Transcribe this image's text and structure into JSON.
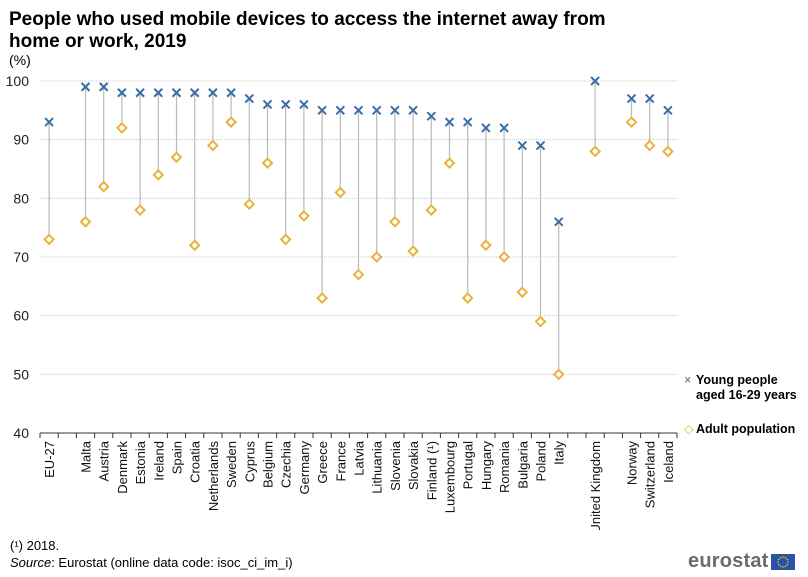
{
  "header": {
    "title": "People who used mobile devices to access the internet away from home or work, 2019",
    "unit": "(%)"
  },
  "legend": {
    "young_marker": "×",
    "young_label_line1": "Young people",
    "young_label_line2": "aged 16-29 years",
    "adult_marker": "◇",
    "adult_label": "Adult population"
  },
  "footer": {
    "footnote": "(¹) 2018.",
    "source_label": "Source",
    "source_text": ": Eurostat (online data code: isoc_ci_im_i)",
    "logo_text": "eurostat"
  },
  "colors": {
    "young": "#3a6fa6",
    "adult": "#e8b33c",
    "connector": "#b9b9b9",
    "grid": "#c8c8c8"
  },
  "chart_data": {
    "type": "scatter",
    "title": "People who used mobile devices to access the internet away from home or work, 2019",
    "xlabel": "",
    "ylabel": "(%)",
    "ylim": [
      40,
      100
    ],
    "yticks": [
      40,
      50,
      60,
      70,
      80,
      90,
      100
    ],
    "grid": true,
    "legend_position": "right",
    "categories": [
      "EU-27",
      "",
      "Malta",
      "Austria",
      "Denmark",
      "Estonia",
      "Ireland",
      "Spain",
      "Croatia",
      "Netherlands",
      "Sweden",
      "Cyprus",
      "Belgium",
      "Czechia",
      "Germany",
      "Greece",
      "France",
      "Latvia",
      "Lithuania",
      "Slovenia",
      "Slovakia",
      "Finland (¹)",
      "Luxembourg",
      "Portugal",
      "Hungary",
      "Romania",
      "Bulgaria",
      "Poland",
      "Italy",
      "",
      "United Kingdom",
      "",
      "Norway",
      "Switzerland",
      "Iceland"
    ],
    "series": [
      {
        "name": "Young people aged 16-29 years",
        "marker": "x",
        "values": [
          93,
          null,
          99,
          99,
          98,
          98,
          98,
          98,
          98,
          98,
          98,
          97,
          96,
          96,
          96,
          95,
          95,
          95,
          95,
          95,
          95,
          94,
          93,
          93,
          92,
          92,
          89,
          89,
          76,
          null,
          100,
          null,
          97,
          97,
          95
        ]
      },
      {
        "name": "Adult population",
        "marker": "diamond",
        "values": [
          73,
          null,
          76,
          82,
          92,
          78,
          84,
          87,
          72,
          89,
          93,
          79,
          86,
          73,
          77,
          63,
          81,
          67,
          70,
          76,
          71,
          78,
          86,
          63,
          72,
          70,
          64,
          59,
          50,
          null,
          88,
          null,
          93,
          89,
          88
        ]
      }
    ]
  }
}
